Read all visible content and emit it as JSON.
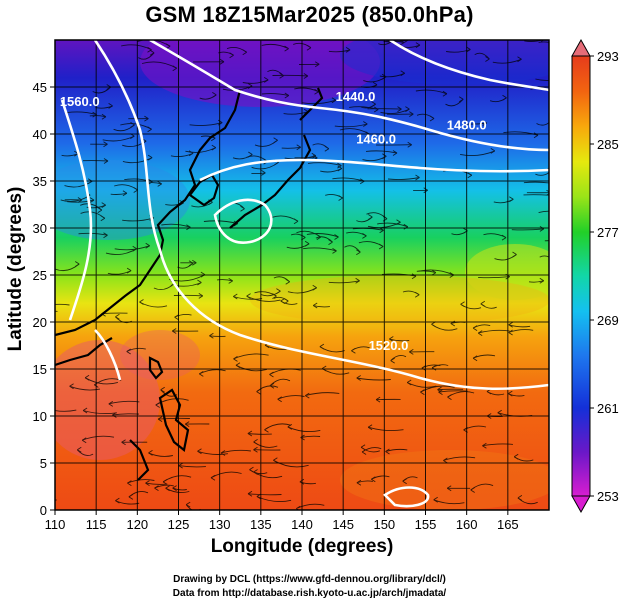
{
  "title": "GSM 18Z15Mar2025 (850.0hPa)",
  "xlabel": "Longitude (degrees)",
  "ylabel": "Latitude  (degrees)",
  "credits": [
    "Drawing by DCL (https://www.gfd-dennou.org/library/dcl/)",
    "Data from http://database.rish.kyoto-u.ac.jp/arch/jmadata/"
  ],
  "chart_data": {
    "type": "heatmap",
    "xlim": [
      110,
      170
    ],
    "ylim": [
      0,
      50
    ],
    "x_ticks": [
      110,
      115,
      120,
      125,
      130,
      135,
      140,
      145,
      150,
      155,
      160,
      165
    ],
    "y_ticks": [
      0,
      5,
      10,
      15,
      20,
      25,
      30,
      35,
      40,
      45
    ],
    "grid": true,
    "colorbar": {
      "min": 253,
      "max": 293,
      "ticks": [
        293,
        285,
        277,
        269,
        261,
        253
      ],
      "colors": [
        "#d81dd0",
        "#5a14c8",
        "#1430d8",
        "#1e78ee",
        "#14c0f0",
        "#12d6a8",
        "#22d028",
        "#9ae418",
        "#e6e80e",
        "#f8a80c",
        "#f26410",
        "#e63c1c",
        "#e66c78"
      ]
    },
    "contour_labels": [
      {
        "text": "1440.0",
        "lon": 146.5,
        "lat": 43.5
      },
      {
        "text": "1480.0",
        "lon": 160.0,
        "lat": 40.5
      },
      {
        "text": "1460.0",
        "lon": 149.0,
        "lat": 39.0
      },
      {
        "text": "1560.0",
        "lon": 113.0,
        "lat": 43.0
      },
      {
        "text": "1520.0",
        "lon": 150.5,
        "lat": 17.0
      }
    ]
  }
}
